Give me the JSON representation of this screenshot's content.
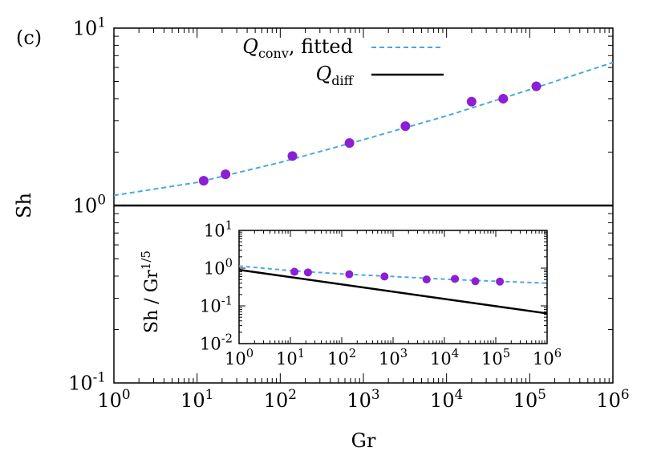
{
  "panel_label": "(c)",
  "chart_data": [
    {
      "type": "scatter",
      "xlabel": "Gr",
      "ylabel": "Sh",
      "xscale": "log",
      "yscale": "log",
      "xlim": [
        1,
        1000000
      ],
      "ylim": [
        0.1,
        10
      ],
      "x_ticks": [
        {
          "b": "10",
          "e": "0"
        },
        {
          "b": "10",
          "e": "1"
        },
        {
          "b": "10",
          "e": "2"
        },
        {
          "b": "10",
          "e": "3"
        },
        {
          "b": "10",
          "e": "4"
        },
        {
          "b": "10",
          "e": "5"
        },
        {
          "b": "10",
          "e": "6"
        }
      ],
      "y_ticks": [
        {
          "b": "10",
          "e": "-1"
        },
        {
          "b": "10",
          "e": "0"
        },
        {
          "b": "10",
          "e": "1"
        }
      ],
      "legend_position": "top-right",
      "points": {
        "color": "#8b1fd6",
        "x": [
          12,
          22,
          140,
          680,
          3200,
          20000,
          48000,
          120000
        ],
        "y": [
          1.38,
          1.5,
          1.9,
          2.25,
          2.8,
          3.85,
          4.0,
          4.7
        ]
      },
      "series": [
        {
          "name_main": "Q",
          "name_sub": "conv",
          "name_suffix": ", fitted",
          "style": "dashed",
          "color": "#4aa8e0",
          "x": [
            1,
            10,
            100,
            1000,
            10000,
            100000,
            1000000
          ],
          "y": [
            1.14,
            1.35,
            1.75,
            2.35,
            3.2,
            4.5,
            6.4
          ]
        },
        {
          "name_main": "Q",
          "name_sub": "diff",
          "name_suffix": "",
          "style": "solid",
          "color": "#000000",
          "x": [
            1,
            1000000
          ],
          "y": [
            1,
            1
          ]
        }
      ]
    },
    {
      "type": "scatter",
      "inset": true,
      "xlabel": "",
      "ylabel": "Sh / Gr1/5",
      "ylabel_main": "Sh / Gr",
      "ylabel_sup": "1/5",
      "xscale": "log",
      "yscale": "log",
      "xlim": [
        1,
        1000000
      ],
      "ylim": [
        0.01,
        10
      ],
      "x_ticks": [
        {
          "b": "10",
          "e": "0"
        },
        {
          "b": "10",
          "e": "1"
        },
        {
          "b": "10",
          "e": "2"
        },
        {
          "b": "10",
          "e": "3"
        },
        {
          "b": "10",
          "e": "4"
        },
        {
          "b": "10",
          "e": "5"
        },
        {
          "b": "10",
          "e": "6"
        }
      ],
      "y_ticks": [
        {
          "b": "10",
          "e": "-2"
        },
        {
          "b": "10",
          "e": "-1"
        },
        {
          "b": "10",
          "e": "0"
        },
        {
          "b": "10",
          "e": "1"
        }
      ],
      "points": {
        "color": "#8b1fd6",
        "x": [
          12,
          22,
          140,
          680,
          4500,
          16000,
          40000,
          120000
        ],
        "y": [
          0.8,
          0.77,
          0.69,
          0.6,
          0.5,
          0.52,
          0.45,
          0.44
        ]
      },
      "series": [
        {
          "style": "dashed",
          "color": "#4aa8e0",
          "x": [
            1,
            10,
            100,
            1000,
            10000,
            100000,
            1000000
          ],
          "y": [
            1.14,
            0.86,
            0.7,
            0.6,
            0.51,
            0.45,
            0.4
          ]
        },
        {
          "style": "solid",
          "color": "#000000",
          "x": [
            1,
            1000000
          ],
          "y": [
            0.9,
            0.063
          ]
        }
      ]
    }
  ]
}
